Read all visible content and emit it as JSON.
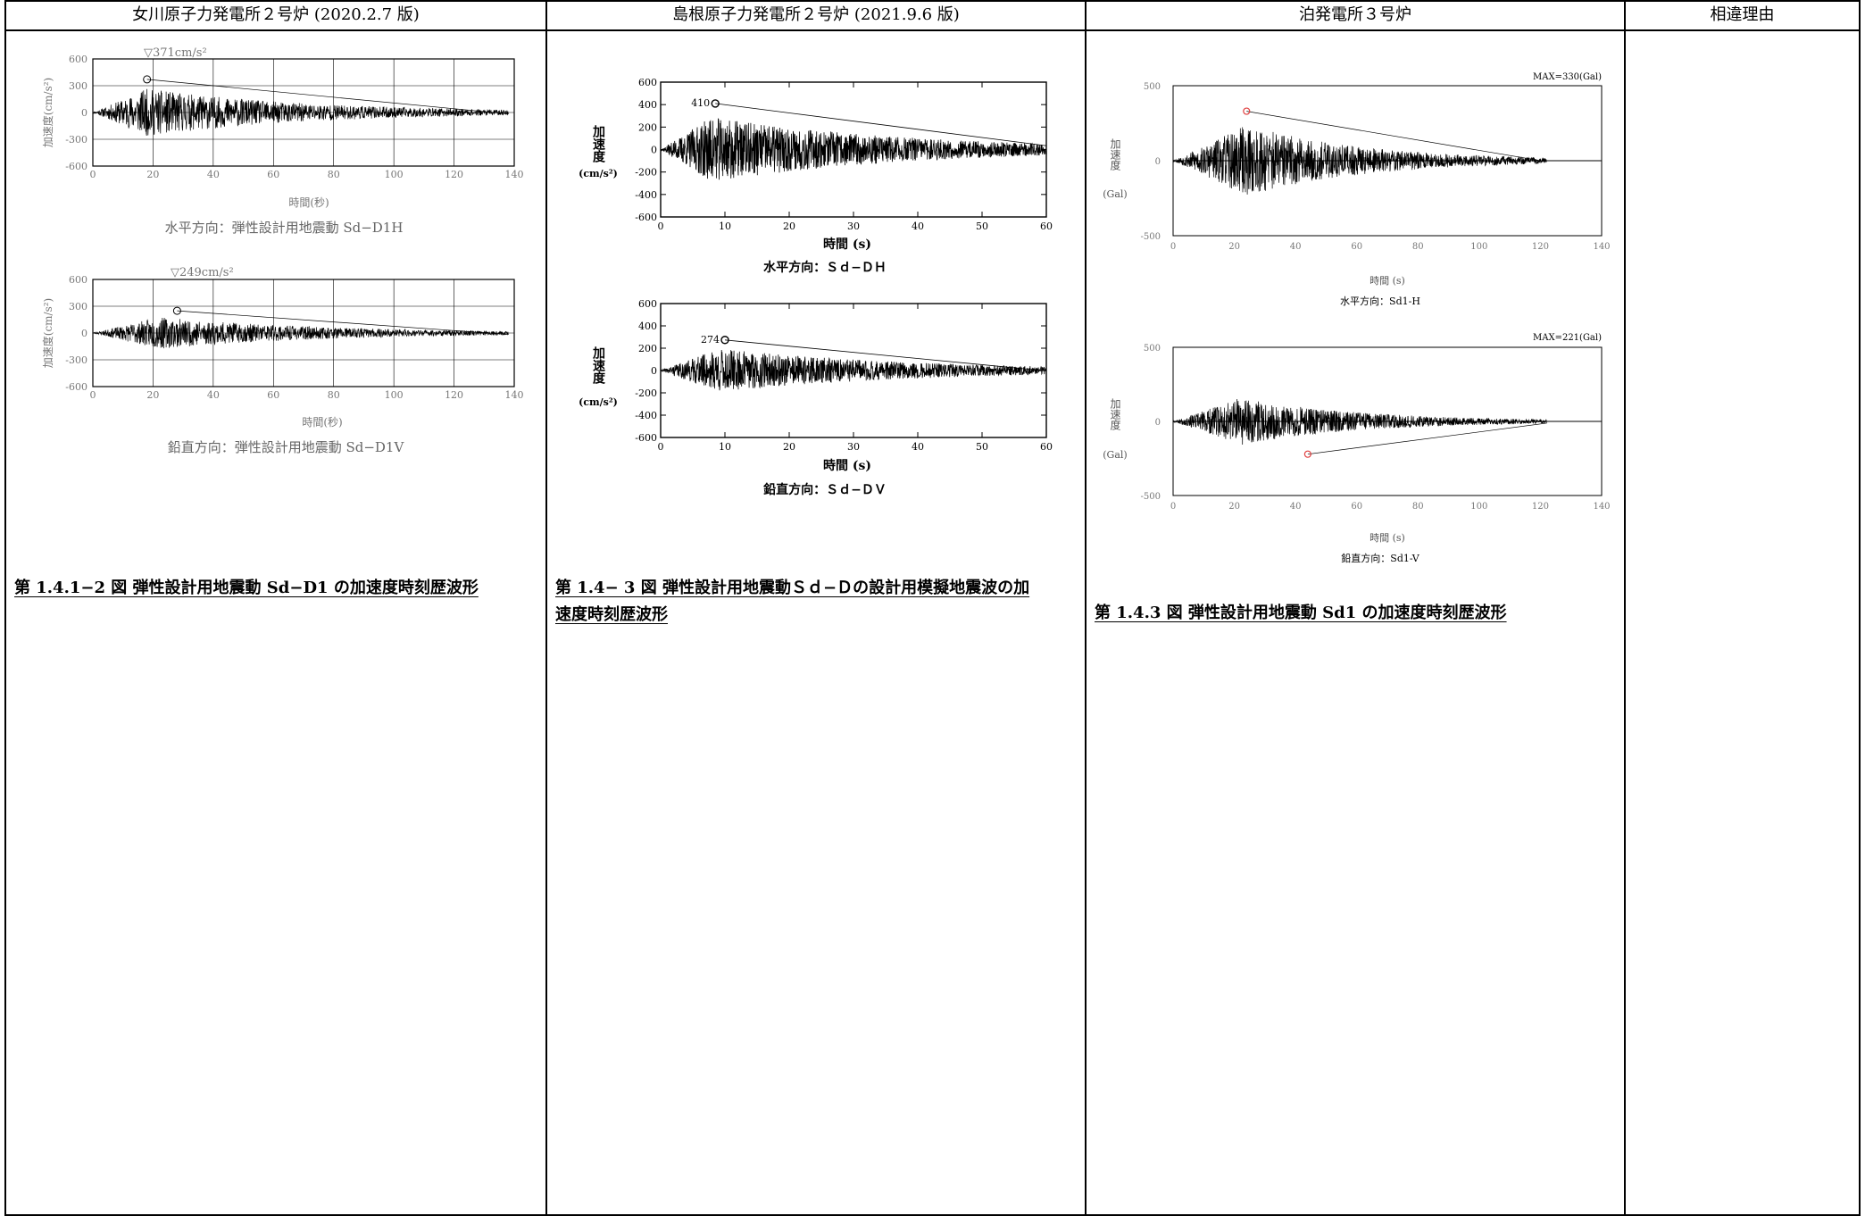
{
  "headers": {
    "col1": "女川原子力発電所２号炉 (2020.2.7 版)",
    "col2": "島根原子力発電所２号炉 (2021.9.6 版)",
    "col3": "泊発電所３号炉",
    "col4": "相違理由"
  },
  "onagawa": {
    "y_axis_label": "加速度(cm/s²)",
    "x_axis_label": "時間(秒)",
    "yticks": [
      "600",
      "300",
      "0",
      "-300",
      "-600"
    ],
    "xticks": [
      "0",
      "20",
      "40",
      "60",
      "80",
      "100",
      "120",
      "140"
    ],
    "horizontal": {
      "peak_label": "▽371cm/s²",
      "subtitle": "水平方向：弾性設計用地震動 Sd−D1H"
    },
    "vertical": {
      "peak_label": "▽249cm/s²",
      "subtitle": "鉛直方向：弾性設計用地震動 Sd−D1V"
    },
    "caption": "第 1.4.1−2 図 弾性設計用地震動 Sd−D1 の加速度時刻歴波形"
  },
  "shimane": {
    "y_axis_label": "加速度",
    "y_unit": "(cm/s²)",
    "x_axis_label": "時間 (s)",
    "yticks": [
      "600",
      "400",
      "200",
      "0",
      "-200",
      "-400",
      "-600"
    ],
    "xticks": [
      "0",
      "10",
      "20",
      "30",
      "40",
      "50",
      "60"
    ],
    "horizontal": {
      "peak_label": "410",
      "subtitle": "水平方向：Ｓｄ−ＤＨ"
    },
    "vertical": {
      "peak_label": "274",
      "subtitle": "鉛直方向：Ｓｄ−ＤＶ"
    },
    "caption_line1": "第 1.4− 3 図 弾性設計用地震動Ｓｄ−Ｄの設計用模擬地震波の加",
    "caption_line2": "速度時刻歴波形"
  },
  "tomari": {
    "y_axis_label": "加速度",
    "y_unit": "(Gal)",
    "x_axis_label": "時間 (s)",
    "yticks": [
      "500",
      "0",
      "-500"
    ],
    "xticks": [
      "0",
      "20",
      "40",
      "60",
      "80",
      "100",
      "120",
      "140"
    ],
    "horizontal": {
      "max_label": "MAX=330(Gal)",
      "subtitle": "水平方向：Sd1-H"
    },
    "vertical": {
      "max_label": "MAX=221(Gal)",
      "subtitle": "鉛直方向：Sd1-V"
    },
    "caption": "第 1.4.3 図 弾性設計用地震動 Sd1 の加速度時刻歴波形"
  },
  "chart_data": [
    {
      "type": "line",
      "ylabel": "加速度(cm/s²)",
      "xlabel": "時間(秒)",
      "xlim": [
        0,
        140
      ],
      "ylim": [
        -600,
        600
      ],
      "series": [
        {
          "peak": 371,
          "peak_time": 18,
          "duration": 138
        }
      ],
      "subtitle": "水平方向：弾性設計用地震動 Sd−D1H"
    },
    {
      "type": "line",
      "ylabel": "加速度(cm/s²)",
      "xlabel": "時間(秒)",
      "xlim": [
        0,
        140
      ],
      "ylim": [
        -600,
        600
      ],
      "series": [
        {
          "peak": 249,
          "peak_time": 28,
          "duration": 138
        }
      ],
      "subtitle": "鉛直方向：弾性設計用地震動 Sd−D1V"
    },
    {
      "type": "line",
      "ylabel": "加速度",
      "xlabel": "時間 (s)",
      "xlim": [
        0,
        60
      ],
      "ylim": [
        -600,
        600
      ],
      "series": [
        {
          "peak": 410,
          "peak_time": 8.5,
          "duration": 60
        }
      ],
      "subtitle": "水平方向：Ｓｄ−ＤＨ"
    },
    {
      "type": "line",
      "ylabel": "加速度",
      "xlabel": "時間 (s)",
      "xlim": [
        0,
        60
      ],
      "ylim": [
        -600,
        600
      ],
      "series": [
        {
          "peak": 274,
          "peak_time": 10,
          "duration": 60
        }
      ],
      "subtitle": "鉛直方向：Ｓｄ−ＤＶ"
    },
    {
      "type": "line",
      "ylabel": "加速度",
      "xlabel": "時間 (s)",
      "xlim": [
        0,
        140
      ],
      "ylim": [
        -500,
        500
      ],
      "series": [
        {
          "peak": 330,
          "peak_time": 24,
          "duration": 122
        }
      ],
      "subtitle": "水平方向：Sd1-H"
    },
    {
      "type": "line",
      "ylabel": "加速度",
      "xlabel": "時間 (s)",
      "xlim": [
        0,
        140
      ],
      "ylim": [
        -500,
        500
      ],
      "series": [
        {
          "peak": -221,
          "peak_time": 44,
          "duration": 122
        }
      ],
      "subtitle": "鉛直方向：Sd1-V"
    }
  ]
}
